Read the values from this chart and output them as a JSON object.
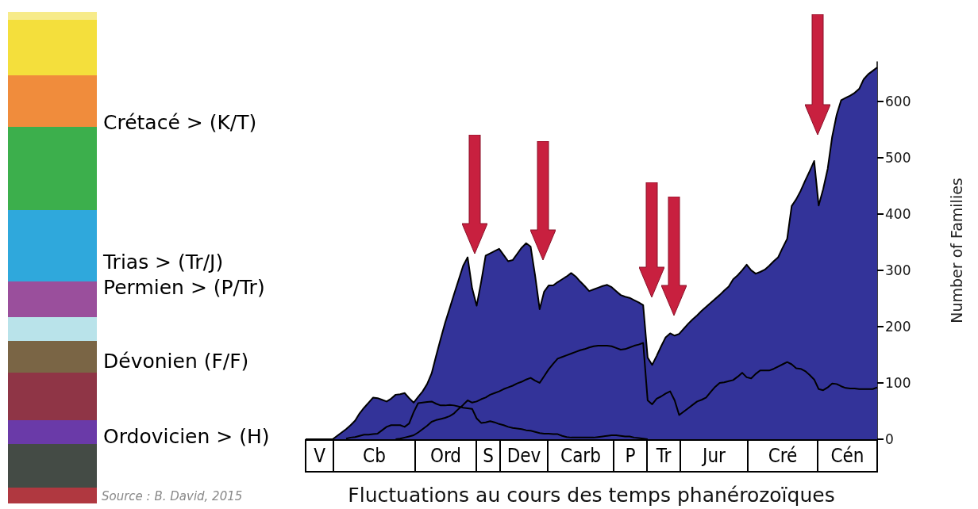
{
  "chart_data": {
    "type": "area",
    "xlabel": "Fluctuations au cours des temps phanérozoïques",
    "ylabel": "Number of Families",
    "annotations": [
      "Crétacé > (K/T)",
      "Trias > (Tr/J)",
      "Permien > (P/Tr)",
      "Dévonien (F/F)",
      "Ordovicien > (H)",
      "Source : B. David, 2015",
      "V",
      "Cb",
      "Ord",
      "S",
      "Dev",
      "Carb",
      "P",
      "Tr",
      "Jur",
      "Cré",
      "Cén"
    ],
    "categories": [
      null,
      null,
      null,
      null,
      null,
      null,
      null,
      null,
      null,
      null,
      null,
      null,
      null,
      null,
      null,
      null,
      null,
      null,
      null,
      null,
      null,
      null,
      null,
      null,
      null,
      null,
      null,
      null,
      null,
      null,
      null,
      null,
      null,
      null,
      null,
      null,
      null,
      null,
      null,
      null,
      null,
      null,
      null,
      null,
      null,
      null,
      null,
      null,
      null,
      null,
      null,
      null,
      null,
      null,
      null,
      null,
      null,
      null,
      null,
      null,
      null,
      null,
      null,
      null,
      null,
      null,
      null,
      null,
      null,
      null,
      null,
      null,
      null,
      null,
      null,
      null,
      null,
      null,
      null,
      null,
      null,
      null,
      null,
      null,
      null,
      null,
      null,
      null,
      null,
      null,
      null,
      null,
      null,
      null,
      null,
      null,
      null,
      null,
      null,
      null,
      null,
      null,
      null,
      null,
      null,
      null,
      null,
      null,
      null,
      null,
      null,
      null,
      null,
      null,
      null,
      null,
      null,
      null,
      null,
      null,
      null,
      null,
      null,
      null,
      null,
      null,
      null,
      null
    ],
    "ylim": [
      0,
      670
    ],
    "yticks": [
      0,
      100,
      200,
      300,
      400,
      500,
      600
    ],
    "tick_labels": "y",
    "grid": false,
    "series": [
      {
        "color": "#333399",
        "values": [
          0,
          0,
          0,
          0,
          0,
          0,
          0,
          6,
          12,
          18,
          25,
          33,
          46,
          56,
          65,
          74,
          73,
          70,
          67,
          72,
          79,
          80,
          82,
          73,
          65,
          75,
          85,
          98,
          117,
          148,
          178,
          207,
          232,
          258,
          283,
          308,
          323,
          268,
          237,
          279,
          326,
          330,
          334,
          338,
          327,
          316,
          318,
          329,
          340,
          348,
          342,
          290,
          231,
          262,
          273,
          273,
          279,
          284,
          289,
          295,
          289,
          280,
          272,
          263,
          266,
          269,
          272,
          274,
          270,
          263,
          256,
          253,
          251,
          247,
          243,
          238,
          145,
          132,
          148,
          165,
          181,
          188,
          184,
          187,
          196,
          205,
          213,
          220,
          228,
          235,
          242,
          249,
          256,
          264,
          271,
          284,
          291,
          300,
          310,
          300,
          294,
          297,
          301,
          308,
          316,
          323,
          340,
          356,
          414,
          426,
          441,
          459,
          476,
          494,
          415,
          444,
          480,
          537,
          576,
          602,
          606,
          610,
          615,
          622,
          639,
          648,
          654,
          660
        ]
      },
      {
        "type": "line",
        "color": "#000000",
        "values": [
          null,
          null,
          null,
          null,
          null,
          null,
          null,
          null,
          null,
          null,
          null,
          null,
          null,
          null,
          null,
          null,
          null,
          null,
          null,
          null,
          0,
          1,
          3,
          5,
          7,
          12,
          18,
          24,
          31,
          34,
          36,
          38,
          41,
          46,
          54,
          61,
          69,
          65,
          67,
          71,
          74,
          79,
          82,
          85,
          89,
          92,
          95,
          99,
          102,
          106,
          109,
          104,
          100,
          112,
          124,
          134,
          143,
          146,
          149,
          152,
          155,
          158,
          160,
          163,
          165,
          166,
          166,
          166,
          165,
          162,
          159,
          160,
          163,
          166,
          168,
          171,
          69,
          62,
          72,
          76,
          81,
          85,
          69,
          43,
          49,
          55,
          61,
          67,
          70,
          74,
          84,
          93,
          100,
          101,
          103,
          105,
          111,
          118,
          110,
          108,
          116,
          122,
          122,
          122,
          125,
          129,
          133,
          137,
          133,
          126,
          125,
          121,
          114,
          106,
          89,
          87,
          92,
          99,
          98,
          94,
          91,
          90,
          90,
          89,
          89,
          89,
          89,
          92
        ]
      },
      {
        "type": "line",
        "color": "#000000",
        "values": [
          null,
          null,
          null,
          null,
          null,
          null,
          null,
          null,
          null,
          1,
          3,
          4,
          6,
          8,
          8,
          9,
          10,
          16,
          22,
          25,
          25,
          25,
          22,
          28,
          48,
          64,
          65,
          66,
          67,
          63,
          60,
          60,
          61,
          60,
          58,
          56,
          55,
          54,
          37,
          29,
          30,
          32,
          30,
          27,
          25,
          22,
          20,
          19,
          18,
          16,
          15,
          13,
          11,
          10,
          10,
          9,
          9,
          6,
          4,
          3,
          3,
          3,
          3,
          3,
          3,
          4,
          5,
          6,
          7,
          7,
          6,
          5,
          5,
          3,
          2,
          1,
          0,
          null,
          null,
          null,
          null,
          null,
          null,
          null,
          null,
          null,
          null,
          null,
          null,
          null,
          null,
          null,
          null,
          null,
          null,
          null,
          null,
          null,
          null,
          null,
          null,
          null,
          null,
          null,
          null,
          null,
          null,
          null,
          null,
          null,
          null,
          null,
          null,
          null,
          null,
          null,
          null,
          null,
          null,
          null,
          null,
          null,
          null,
          null,
          null,
          null,
          null,
          null
        ]
      }
    ]
  }
}
